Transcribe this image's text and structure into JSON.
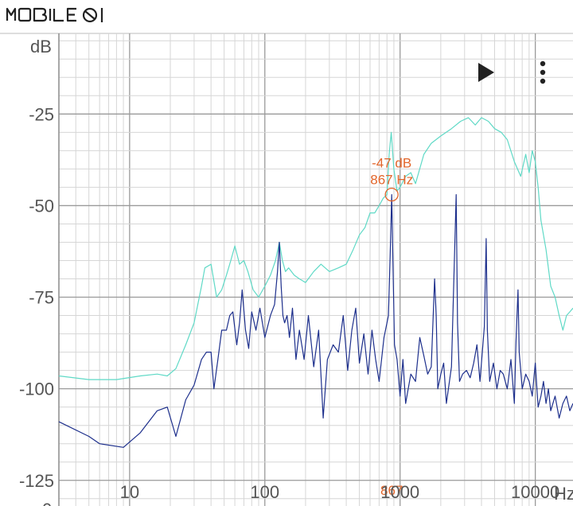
{
  "watermark": {
    "text": "MOBILE01"
  },
  "toolbar": {
    "play_icon": "play-icon",
    "menu_icon": "more-vert-icon"
  },
  "chart_data": {
    "type": "line",
    "ylabel": "dB",
    "xlabel": "Hz",
    "x_scale": "log",
    "xlim": [
      3,
      19000
    ],
    "ylim": [
      -132,
      -3
    ],
    "y_ticks": [
      {
        "value": -25,
        "label": "-25"
      },
      {
        "value": -50,
        "label": "-50"
      },
      {
        "value": -75,
        "label": "-75"
      },
      {
        "value": -100,
        "label": "-100"
      },
      {
        "value": -125,
        "label": "-125"
      }
    ],
    "x_ticks": [
      {
        "value": 10,
        "label": "10"
      },
      {
        "value": 100,
        "label": "100"
      },
      {
        "value": 1000,
        "label": "1000"
      },
      {
        "value": 10000,
        "label": "10000"
      }
    ],
    "bottom_partial_label": "0",
    "grid": true,
    "cursor": {
      "db_label": "-47 dB",
      "hz_label": "867 Hz",
      "x_axis_label": "867",
      "hz": 867,
      "db": -47,
      "color": "#e2662b"
    },
    "series": [
      {
        "color": "#5fd9c6",
        "points": [
          [
            3,
            -96.5
          ],
          [
            5,
            -97.5
          ],
          [
            8,
            -97.5
          ],
          [
            12,
            -96.5
          ],
          [
            16,
            -96
          ],
          [
            19,
            -96.5
          ],
          [
            22,
            -94.5
          ],
          [
            26,
            -88
          ],
          [
            30,
            -82
          ],
          [
            34,
            -72
          ],
          [
            36,
            -67
          ],
          [
            40,
            -66
          ],
          [
            44,
            -75
          ],
          [
            48,
            -73
          ],
          [
            52,
            -69
          ],
          [
            56,
            -65
          ],
          [
            60,
            -61
          ],
          [
            65,
            -66
          ],
          [
            70,
            -65
          ],
          [
            75,
            -68
          ],
          [
            82,
            -73
          ],
          [
            90,
            -75
          ],
          [
            100,
            -72
          ],
          [
            110,
            -69
          ],
          [
            120,
            -65
          ],
          [
            128,
            -60
          ],
          [
            135,
            -65
          ],
          [
            142,
            -68
          ],
          [
            150,
            -67
          ],
          [
            165,
            -69
          ],
          [
            180,
            -70
          ],
          [
            200,
            -71
          ],
          [
            230,
            -68
          ],
          [
            260,
            -66
          ],
          [
            300,
            -68
          ],
          [
            350,
            -67
          ],
          [
            400,
            -66
          ],
          [
            450,
            -62
          ],
          [
            500,
            -58
          ],
          [
            550,
            -56
          ],
          [
            600,
            -52
          ],
          [
            650,
            -52
          ],
          [
            700,
            -50
          ],
          [
            750,
            -48
          ],
          [
            800,
            -47
          ],
          [
            830,
            -36
          ],
          [
            860,
            -30
          ],
          [
            900,
            -40
          ],
          [
            950,
            -46
          ],
          [
            1000,
            -45
          ],
          [
            1100,
            -42
          ],
          [
            1200,
            -41
          ],
          [
            1300,
            -44
          ],
          [
            1500,
            -36
          ],
          [
            1700,
            -33
          ],
          [
            2000,
            -31
          ],
          [
            2400,
            -29
          ],
          [
            2800,
            -27
          ],
          [
            3200,
            -26
          ],
          [
            3600,
            -28
          ],
          [
            4000,
            -26
          ],
          [
            4500,
            -27
          ],
          [
            5000,
            -29
          ],
          [
            5600,
            -30
          ],
          [
            6200,
            -32
          ],
          [
            7000,
            -38
          ],
          [
            7800,
            -42
          ],
          [
            8500,
            -36
          ],
          [
            9000,
            -41
          ],
          [
            9500,
            -35
          ],
          [
            10000,
            -38
          ],
          [
            10500,
            -45
          ],
          [
            11000,
            -54
          ],
          [
            12000,
            -62
          ],
          [
            13000,
            -72
          ],
          [
            14000,
            -75
          ],
          [
            15000,
            -80
          ],
          [
            16000,
            -84
          ],
          [
            17000,
            -80
          ],
          [
            18000,
            -79
          ],
          [
            19000,
            -78
          ]
        ]
      },
      {
        "color": "#1d2f8c",
        "points": [
          [
            3,
            -109
          ],
          [
            5,
            -113
          ],
          [
            6,
            -115
          ],
          [
            9,
            -116
          ],
          [
            12,
            -112
          ],
          [
            16,
            -106
          ],
          [
            19,
            -105
          ],
          [
            22,
            -113
          ],
          [
            26,
            -103
          ],
          [
            30,
            -99
          ],
          [
            34,
            -92
          ],
          [
            37,
            -90
          ],
          [
            40,
            -90
          ],
          [
            42,
            -100
          ],
          [
            45,
            -92
          ],
          [
            48,
            -84
          ],
          [
            52,
            -84
          ],
          [
            55,
            -80
          ],
          [
            58,
            -79
          ],
          [
            62,
            -88
          ],
          [
            65,
            -82
          ],
          [
            68,
            -73
          ],
          [
            72,
            -84
          ],
          [
            76,
            -89
          ],
          [
            80,
            -79
          ],
          [
            86,
            -84
          ],
          [
            92,
            -78
          ],
          [
            100,
            -86
          ],
          [
            110,
            -80
          ],
          [
            118,
            -77
          ],
          [
            124,
            -68
          ],
          [
            128,
            -60
          ],
          [
            132,
            -72
          ],
          [
            136,
            -80
          ],
          [
            140,
            -82
          ],
          [
            146,
            -80
          ],
          [
            152,
            -86
          ],
          [
            160,
            -78
          ],
          [
            170,
            -92
          ],
          [
            180,
            -84
          ],
          [
            195,
            -92
          ],
          [
            210,
            -80
          ],
          [
            230,
            -94
          ],
          [
            250,
            -84
          ],
          [
            270,
            -108
          ],
          [
            290,
            -92
          ],
          [
            320,
            -88
          ],
          [
            350,
            -90
          ],
          [
            380,
            -80
          ],
          [
            410,
            -95
          ],
          [
            440,
            -84
          ],
          [
            470,
            -78
          ],
          [
            500,
            -93
          ],
          [
            540,
            -85
          ],
          [
            580,
            -96
          ],
          [
            620,
            -84
          ],
          [
            660,
            -92
          ],
          [
            700,
            -98
          ],
          [
            760,
            -86
          ],
          [
            820,
            -80
          ],
          [
            850,
            -60
          ],
          [
            867,
            -47
          ],
          [
            885,
            -65
          ],
          [
            910,
            -88
          ],
          [
            950,
            -92
          ],
          [
            1000,
            -102
          ],
          [
            1050,
            -92
          ],
          [
            1100,
            -104
          ],
          [
            1200,
            -96
          ],
          [
            1300,
            -98
          ],
          [
            1400,
            -86
          ],
          [
            1500,
            -91
          ],
          [
            1600,
            -96
          ],
          [
            1700,
            -94
          ],
          [
            1800,
            -70
          ],
          [
            1850,
            -80
          ],
          [
            1900,
            -100
          ],
          [
            2000,
            -96
          ],
          [
            2100,
            -93
          ],
          [
            2200,
            -104
          ],
          [
            2400,
            -94
          ],
          [
            2600,
            -47
          ],
          [
            2660,
            -82
          ],
          [
            2750,
            -98
          ],
          [
            2900,
            -96
          ],
          [
            3100,
            -95
          ],
          [
            3300,
            -97
          ],
          [
            3500,
            -93
          ],
          [
            3700,
            -88
          ],
          [
            3900,
            -98
          ],
          [
            4200,
            -83
          ],
          [
            4330,
            -59
          ],
          [
            4420,
            -84
          ],
          [
            4600,
            -98
          ],
          [
            4900,
            -93
          ],
          [
            5200,
            -100
          ],
          [
            5500,
            -95
          ],
          [
            5800,
            -96
          ],
          [
            6200,
            -100
          ],
          [
            6600,
            -92
          ],
          [
            7000,
            -104
          ],
          [
            7200,
            -87
          ],
          [
            7450,
            -73
          ],
          [
            7600,
            -90
          ],
          [
            8000,
            -100
          ],
          [
            8500,
            -96
          ],
          [
            9000,
            -98
          ],
          [
            9500,
            -102
          ],
          [
            10000,
            -93
          ],
          [
            10500,
            -105
          ],
          [
            11000,
            -102
          ],
          [
            11500,
            -98
          ],
          [
            12000,
            -104
          ],
          [
            12500,
            -100
          ],
          [
            13000,
            -106
          ],
          [
            14000,
            -102
          ],
          [
            15000,
            -108
          ],
          [
            16000,
            -104
          ],
          [
            17000,
            -102
          ],
          [
            18000,
            -106
          ],
          [
            19000,
            -104
          ]
        ]
      }
    ]
  }
}
